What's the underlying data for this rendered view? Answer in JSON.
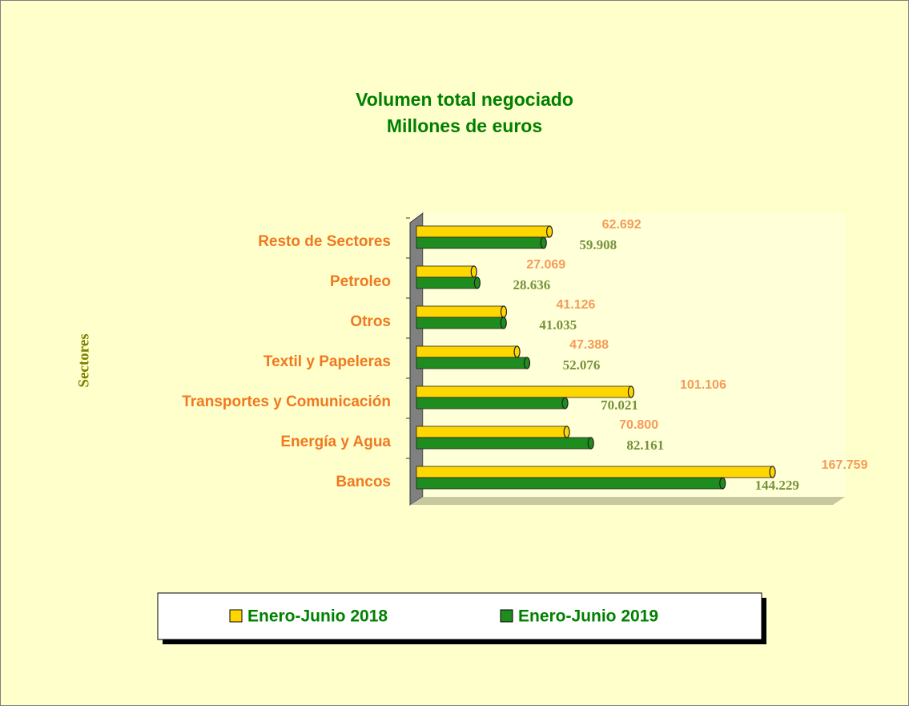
{
  "chart_data": {
    "type": "barh",
    "title": "Volumen total negociado",
    "subtitle": "Millones de euros",
    "y_label": "Sectores",
    "categories": [
      "Resto de Sectores",
      "Petroleo",
      "Otros",
      "Textil y Papeleras",
      "Transportes y Comunicación",
      "Energía y Agua",
      "Bancos"
    ],
    "xlim": [
      0,
      200000
    ],
    "series": [
      {
        "name": "Enero-Junio 2018",
        "color": "#ffd700",
        "label_color": "#f79a5a",
        "values": [
          62692,
          27069,
          41126,
          47388,
          101106,
          70800,
          167759
        ],
        "value_labels": [
          "62.692",
          "27.069",
          "41.126",
          "47.388",
          "101.106",
          "70.800",
          "167.759"
        ]
      },
      {
        "name": "Enero-Junio 2019",
        "color": "#1e8c1e",
        "label_color": "#76923c",
        "values": [
          59908,
          28636,
          41035,
          52076,
          70021,
          82161,
          144229
        ],
        "value_labels": [
          "59.908",
          "28.636",
          "41.035",
          "52.076",
          "70.021",
          "82.161",
          "144.229"
        ]
      }
    ]
  }
}
